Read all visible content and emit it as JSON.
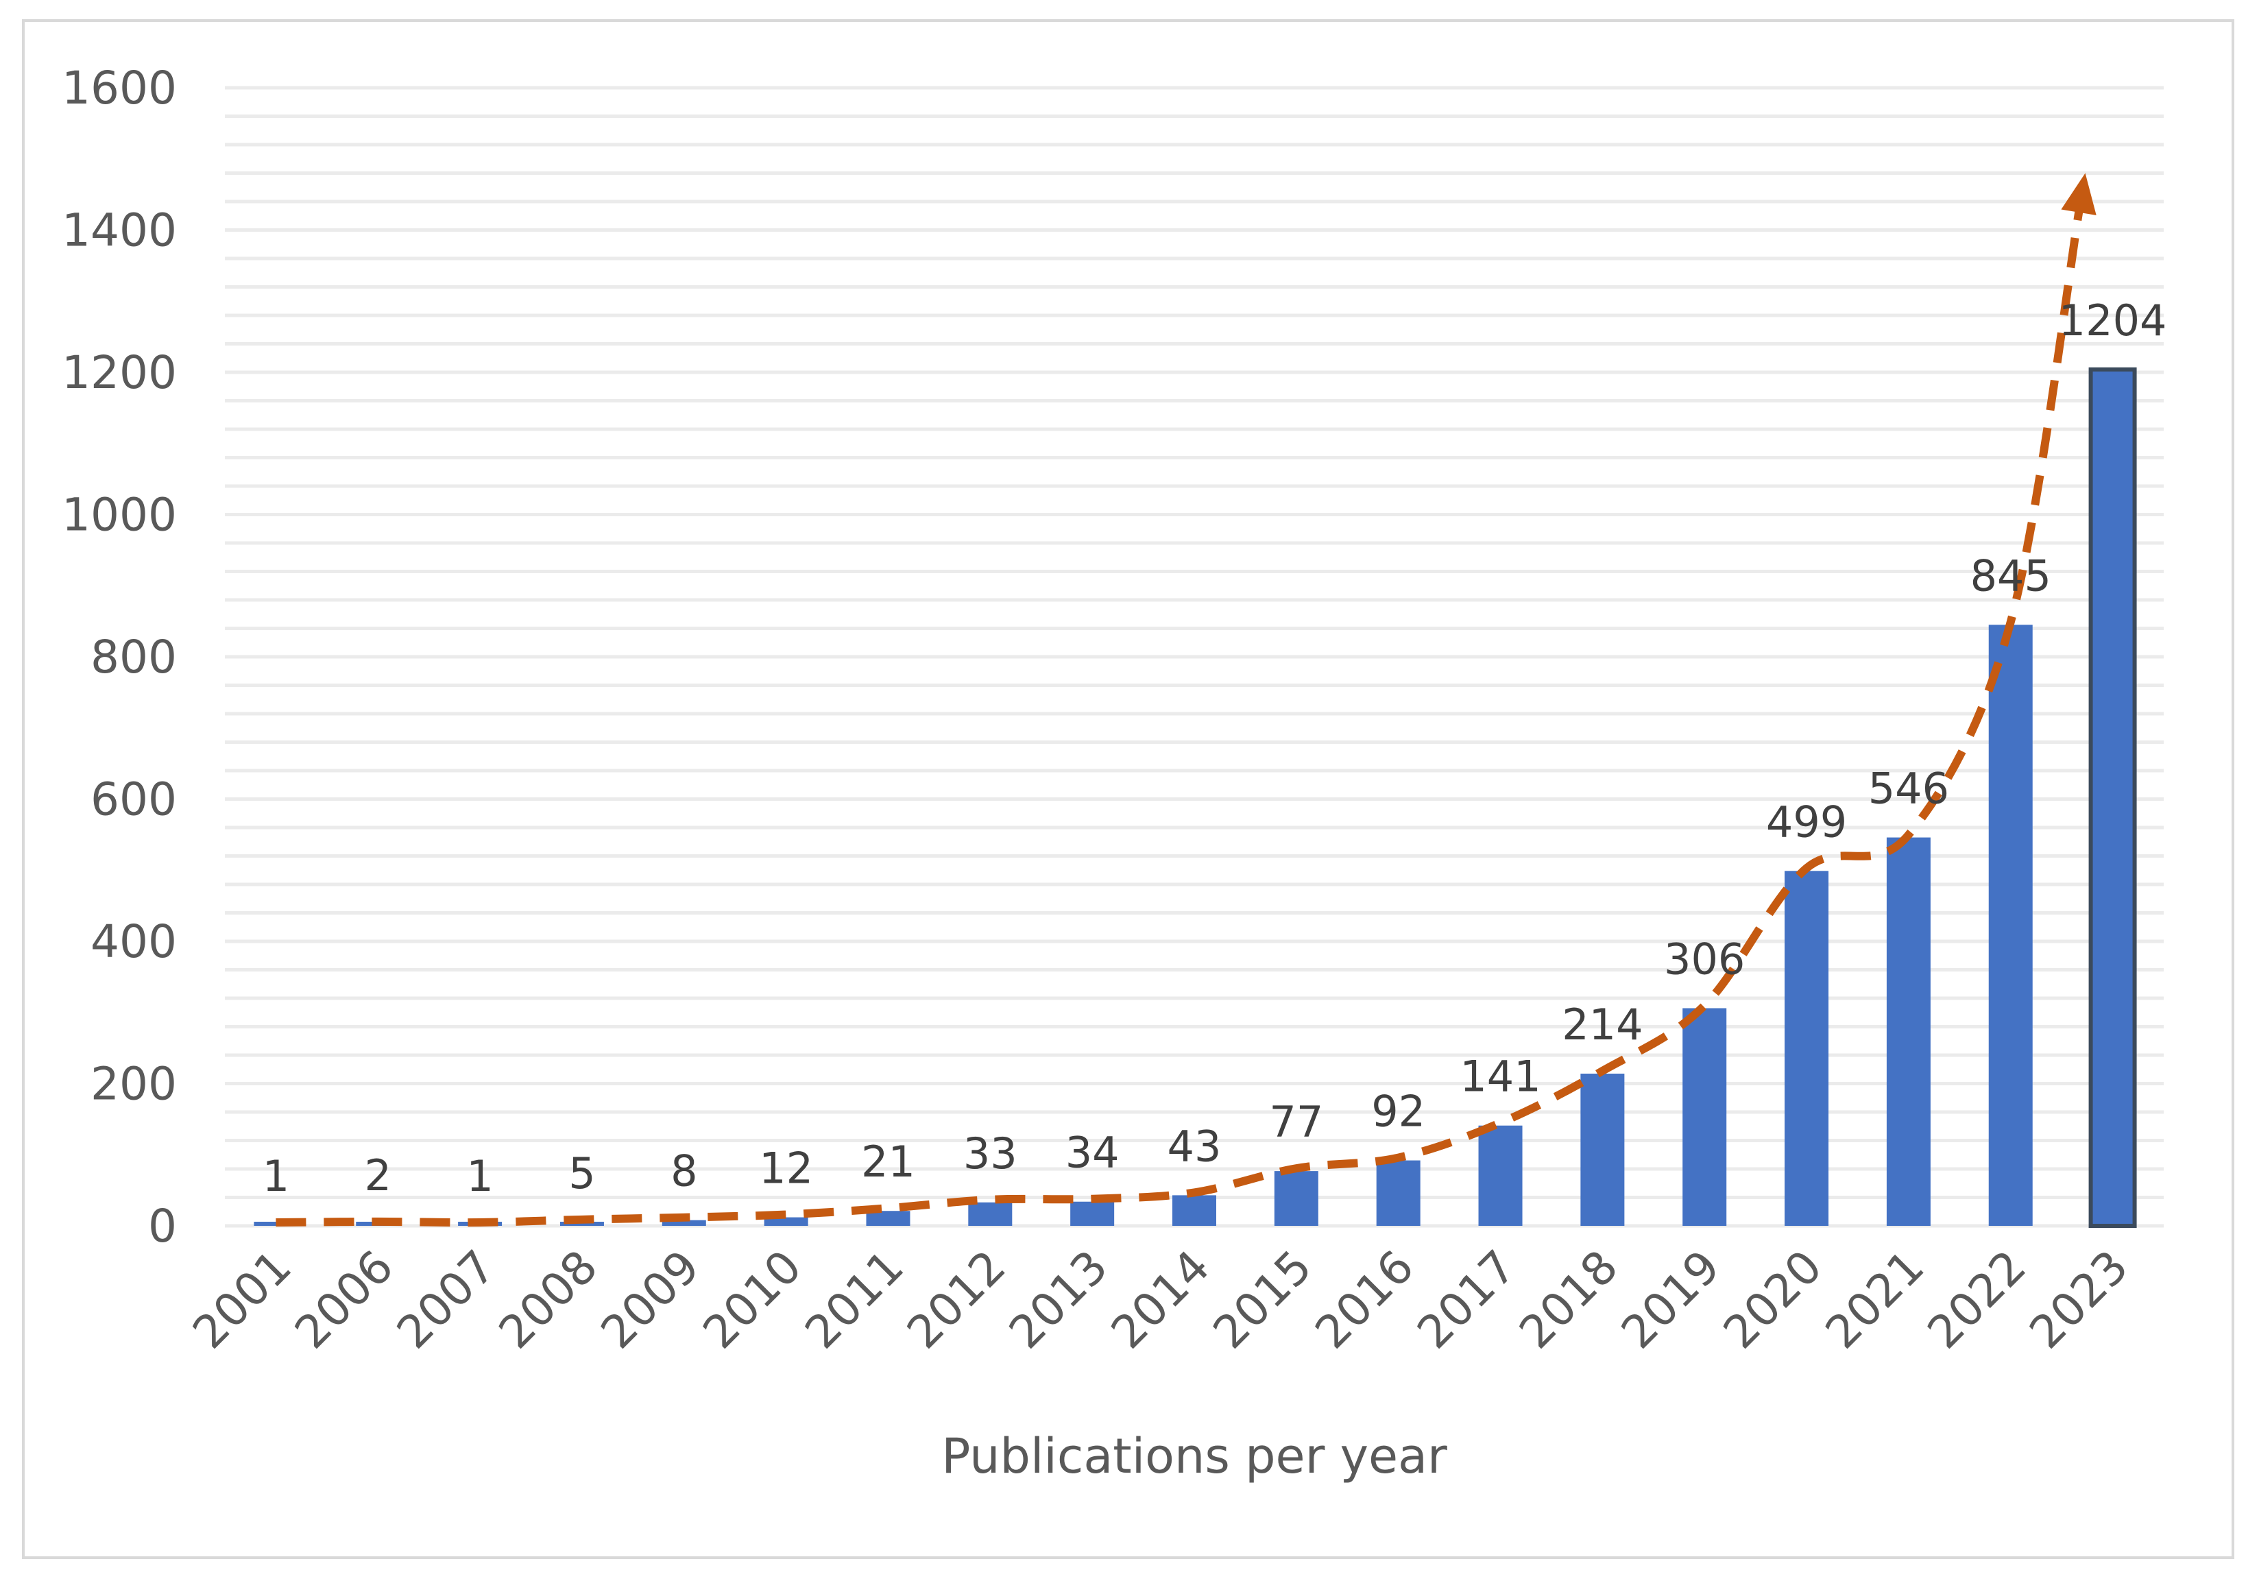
{
  "chart_data": {
    "type": "bar",
    "title": "",
    "xlabel": "Publications per year",
    "ylabel": "",
    "categories": [
      "2001",
      "2006",
      "2007",
      "2008",
      "2009",
      "2010",
      "2011",
      "2012",
      "2013",
      "2014",
      "2015",
      "2016",
      "2017",
      "2018",
      "2019",
      "2020",
      "2021",
      "2022",
      "2023"
    ],
    "values": [
      1,
      2,
      1,
      5,
      8,
      12,
      21,
      33,
      34,
      43,
      77,
      92,
      141,
      214,
      306,
      499,
      546,
      845,
      1204
    ],
    "data_labels": [
      "1",
      "2",
      "1",
      "5",
      "8",
      "12",
      "21",
      "33",
      "34",
      "43",
      "77",
      "92",
      "141",
      "214",
      "306",
      "499",
      "546",
      "845",
      "1204"
    ],
    "ylim": [
      0,
      1600
    ],
    "y_ticks": [
      0,
      200,
      400,
      600,
      800,
      1000,
      1200,
      1400,
      1600
    ],
    "y_tick_labels": [
      "0",
      "200",
      "400",
      "600",
      "800",
      "1000",
      "1200",
      "1400",
      "1600"
    ],
    "grid": true,
    "legend": "none",
    "highlighted_category": "2023",
    "trend": {
      "style": "dashed-arrow",
      "values": [
        1,
        2,
        1,
        5,
        8,
        12,
        21,
        33,
        34,
        43,
        77,
        92,
        141,
        214,
        306,
        499,
        546,
        845,
        1204
      ],
      "arrow_end": {
        "x": "2023",
        "y": 1480
      }
    },
    "colors": {
      "bar": "#4472c4",
      "highlight_border": "#3b4a5c",
      "trend": "#c55a11",
      "grid": "#ebebeb",
      "frame": "#d9d9d9"
    }
  }
}
